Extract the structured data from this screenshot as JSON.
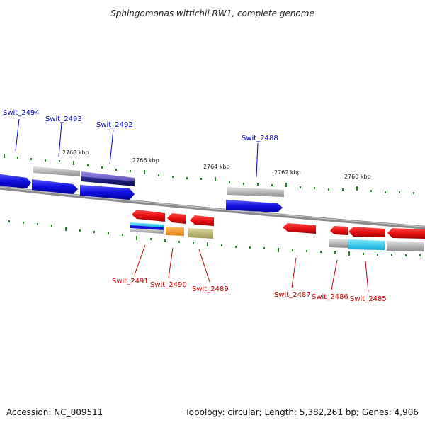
{
  "title": "Sphingomonas wittichii RW1, complete genome",
  "footer": {
    "accession": "Accession: NC_009511",
    "summary": "Topology: circular; Length: 5,382,261 bp; Genes: 4,906"
  },
  "kbp_labels": [
    "2768 kbp",
    "2766 kbp",
    "2764 kbp",
    "2762 kbp",
    "2760 kbp"
  ],
  "genes_top": [
    {
      "label": "Swit_2494"
    },
    {
      "label": "Swit_2493"
    },
    {
      "label": "Swit_2492"
    },
    {
      "label": "Swit_2488"
    }
  ],
  "genes_bottom": [
    {
      "label": "Swit_2491"
    },
    {
      "label": "Swit_2490"
    },
    {
      "label": "Swit_2489"
    },
    {
      "label": "Swit_2487"
    },
    {
      "label": "Swit_2486"
    },
    {
      "label": "Swit_2485"
    }
  ],
  "colors": {
    "forward_gene": "#1010e0",
    "reverse_gene": "#e01010",
    "forward_label": "#0000cc",
    "reverse_label": "#cc0000",
    "tick": "#228822",
    "backbone": "#888888",
    "rna_gray": "#b8b8b8",
    "purple": "#7a6ad0",
    "cyan": "#20c8f0",
    "orange": "#f39a1a",
    "olive": "#bdb472"
  }
}
